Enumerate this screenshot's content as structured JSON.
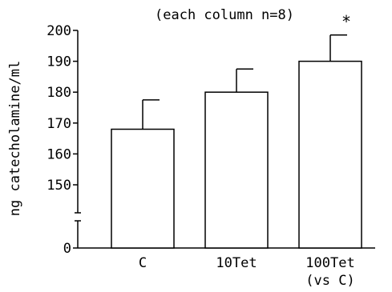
{
  "chart_data": {
    "type": "bar",
    "title": "(each column n=8)",
    "ylabel": "ng catecholamine/ml",
    "xlabel": "",
    "categories": [
      {
        "line1": "C",
        "line2": ""
      },
      {
        "line1": "10Tet",
        "line2": ""
      },
      {
        "line1": "100Tet",
        "line2": "(vs C)"
      }
    ],
    "values": [
      168,
      180,
      190
    ],
    "error_upper": [
      177.5,
      187.5,
      198.5
    ],
    "significance": [
      "",
      "",
      "*"
    ],
    "yticks": [
      {
        "value": 0,
        "label": "0"
      },
      {
        "value": 150,
        "label": "150"
      },
      {
        "value": 160,
        "label": "160"
      },
      {
        "value": 170,
        "label": "170"
      },
      {
        "value": 180,
        "label": "180"
      },
      {
        "value": 190,
        "label": "190"
      },
      {
        "value": 200,
        "label": "200"
      }
    ],
    "ylim": [
      0,
      200
    ],
    "axis_break": true,
    "grid": false,
    "bar_color": "#ffffff",
    "edge_color": "#000000"
  }
}
